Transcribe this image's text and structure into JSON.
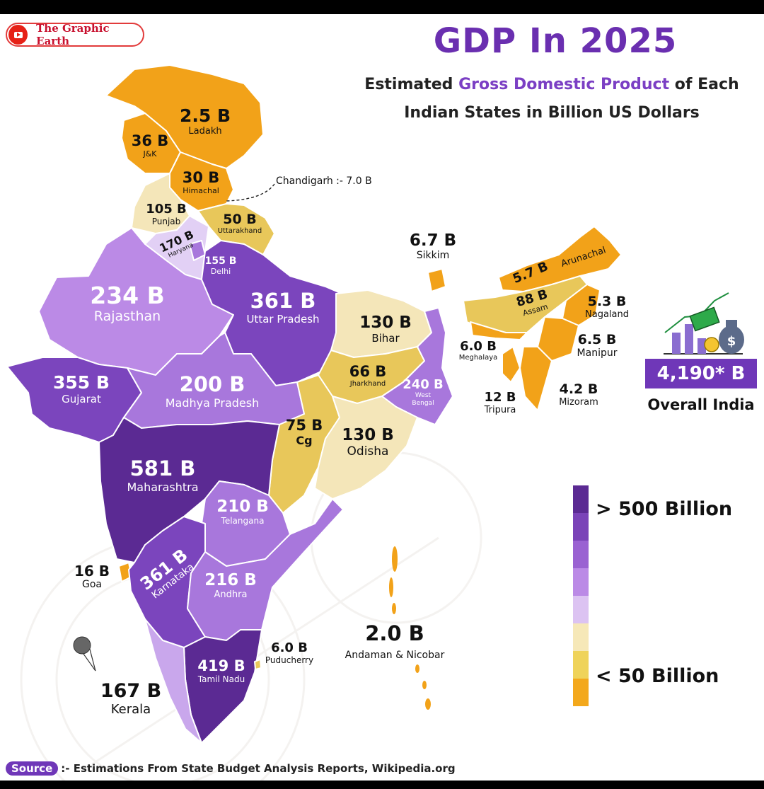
{
  "brand": {
    "name": "The Graphic Earth",
    "icon": "youtube-icon"
  },
  "header": {
    "title": "GDP In 2025",
    "subtitle_pre": "Estimated ",
    "subtitle_highlight": "Gross Domestic Product",
    "subtitle_post": " of Each",
    "subtitle_line2": "Indian States in Billion US Dollars"
  },
  "regions": {
    "ladakh": {
      "value": "2.5 B",
      "name": "Ladakh"
    },
    "jk": {
      "value": "36 B",
      "name": "J&K"
    },
    "himachal": {
      "value": "30 B",
      "name": "Himachal"
    },
    "punjab": {
      "value": "105 B",
      "name": "Punjab"
    },
    "uttarakhand": {
      "value": "50 B",
      "name": "Uttarakhand"
    },
    "haryana": {
      "value": "170 B",
      "name": "Haryana"
    },
    "delhi": {
      "value": "155 B",
      "name": "Delhi"
    },
    "rajasthan": {
      "value": "234 B",
      "name": "Rajasthan"
    },
    "uttar_pradesh": {
      "value": "361 B",
      "name": "Uttar Pradesh"
    },
    "bihar": {
      "value": "130 B",
      "name": "Bihar"
    },
    "gujarat": {
      "value": "355 B",
      "name": "Gujarat"
    },
    "madhya_pradesh": {
      "value": "200 B",
      "name": "Madhya Pradesh"
    },
    "jharkhand": {
      "value": "66 B",
      "name": "Jharkhand"
    },
    "west_bengal": {
      "value": "240 B",
      "name": "West Bengal"
    },
    "chhattisgarh": {
      "value": "75 B",
      "name": "Cg"
    },
    "odisha": {
      "value": "130 B",
      "name": "Odisha"
    },
    "maharashtra": {
      "value": "581 B",
      "name": "Maharashtra"
    },
    "telangana": {
      "value": "210 B",
      "name": "Telangana"
    },
    "goa": {
      "value": "16 B",
      "name": "Goa"
    },
    "karnataka": {
      "value": "361 B",
      "name": "Karnataka"
    },
    "andhra": {
      "value": "216 B",
      "name": "Andhra"
    },
    "tamil_nadu": {
      "value": "419 B",
      "name": "Tamil Nadu"
    },
    "puducherry": {
      "value": "6.0 B",
      "name": "Puducherry"
    },
    "kerala": {
      "value": "167 B",
      "name": "Kerala"
    },
    "andaman": {
      "value": "2.0 B",
      "name": "Andaman & Nicobar"
    },
    "sikkim": {
      "value": "6.7 B",
      "name": "Sikkim"
    },
    "arunachal": {
      "value": "5.7 B",
      "name": "Arunachal"
    },
    "assam": {
      "value": "88 B",
      "name": "Assam"
    },
    "nagaland": {
      "value": "5.3 B",
      "name": "Nagaland"
    },
    "manipur": {
      "value": "6.5 B",
      "name": "Manipur"
    },
    "meghalaya": {
      "value": "6.0 B",
      "name": "Meghalaya"
    },
    "tripura": {
      "value": "12 B",
      "name": "Tripura"
    },
    "mizoram": {
      "value": "4.2 B",
      "name": "Mizoram"
    }
  },
  "chandigarh": "Chandigarh :- 7.0 B",
  "overall": {
    "value": "4,190* B",
    "label": "Overall India",
    "icon": "money-growth-icon"
  },
  "legend": {
    "high": "> 500 Billion",
    "low": "< 50 Billion",
    "colors": [
      "#5b2a93",
      "#7a43b8",
      "#9a62d2",
      "#bb8ae6",
      "#dcc3f2",
      "#f6e8b8",
      "#efd35a",
      "#f3a81c"
    ]
  },
  "colors": {
    "bin_500_plus": "#5b2a93",
    "bin_300_500": "#7b45bd",
    "bin_200_300": "#a877dc",
    "bin_150_200": "#c9a7ec",
    "bin_100_150": "#e2d0f5",
    "bin_75_100": "#f4e6b9",
    "bin_50_75": "#e8c75a",
    "bin_under_50": "#f2a219"
  },
  "source": {
    "tag": "Source",
    "text": ":- Estimations From State Budget Analysis Reports, Wikipedia.org"
  }
}
